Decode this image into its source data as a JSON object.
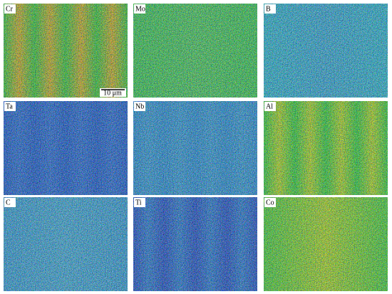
{
  "panels": [
    {
      "label": "Cr"
    },
    {
      "label": "Mo"
    },
    {
      "label": "B"
    },
    {
      "label": "Ta"
    },
    {
      "label": "Nb"
    },
    {
      "label": "Al"
    },
    {
      "label": "C"
    },
    {
      "label": "Ti"
    },
    {
      "label": "Co"
    }
  ],
  "scale_bar": "10 μm"
}
